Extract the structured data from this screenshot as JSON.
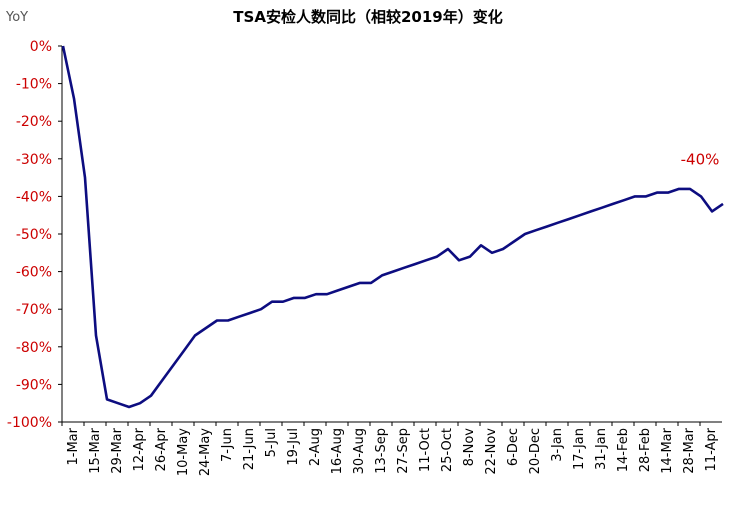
{
  "chart_data": {
    "type": "line",
    "title": "TSA安检人数同比（相较2019年）变化",
    "unit_label": "YoY",
    "y_ticks": [
      "0%",
      "-10%",
      "-20%",
      "-30%",
      "-40%",
      "-50%",
      "-60%",
      "-70%",
      "-80%",
      "-90%",
      "-100%"
    ],
    "ylim": [
      -100,
      0
    ],
    "x_ticks": [
      "1-Mar",
      "15-Mar",
      "29-Mar",
      "12-Apr",
      "26-Apr",
      "10-May",
      "24-May",
      "7-Jun",
      "21-Jun",
      "5-Jul",
      "19-Jul",
      "2-Aug",
      "16-Aug",
      "30-Aug",
      "13-Sep",
      "27-Sep",
      "11-Oct",
      "25-Oct",
      "8-Nov",
      "22-Nov",
      "6-Dec",
      "20-Dec",
      "3-Jan",
      "17-Jan",
      "31-Jan",
      "14-Feb",
      "28-Feb",
      "14-Mar",
      "28-Mar",
      "11-Apr"
    ],
    "annotation": "-40%",
    "series": [
      {
        "color": "#0d0d80",
        "x_start": "2020-03-01",
        "step_days": 7,
        "values": [
          0,
          -14,
          -35,
          -77,
          -94,
          -95,
          -96,
          -95,
          -93,
          -89,
          -85,
          -81,
          -77,
          -75,
          -73,
          -73,
          -72,
          -71,
          -70,
          -68,
          -68,
          -67,
          -67,
          -66,
          -66,
          -65,
          -64,
          -63,
          -63,
          -61,
          -60,
          -59,
          -58,
          -57,
          -56,
          -54,
          -57,
          -56,
          -53,
          -55,
          -54,
          -52,
          -50,
          -49,
          -48,
          -47,
          -46,
          -45,
          -44,
          -43,
          -42,
          -41,
          -40,
          -40,
          -39,
          -39,
          -38,
          -38,
          -40,
          -44,
          -42
        ]
      }
    ]
  }
}
